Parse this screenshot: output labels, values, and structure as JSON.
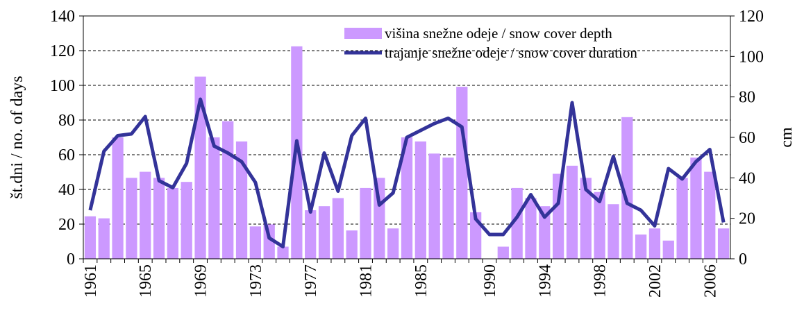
{
  "chart_data": {
    "type": "bar-line",
    "categories": [
      "1961",
      null,
      null,
      null,
      "1965",
      null,
      null,
      null,
      "1969",
      null,
      null,
      null,
      "1973",
      null,
      null,
      null,
      "1977",
      null,
      null,
      null,
      "1981",
      null,
      null,
      null,
      "1985",
      null,
      null,
      null,
      null,
      "1990",
      null,
      null,
      null,
      "1994",
      null,
      null,
      null,
      "1998",
      null,
      null,
      null,
      "2002",
      null,
      null,
      null,
      "2006",
      null
    ],
    "series": [
      {
        "name": "višina snežne odeje / snow cover depth",
        "color": "#cc99ff",
        "axis": "y2",
        "kind": "bar",
        "values": [
          21,
          20,
          60,
          40,
          43,
          40,
          35,
          38,
          90,
          60,
          68,
          58,
          16,
          17,
          6,
          105,
          24,
          26,
          30,
          14,
          35,
          40,
          15,
          60,
          58,
          52,
          50,
          85,
          23,
          0,
          6,
          35,
          30,
          26,
          42,
          46,
          40,
          33,
          27,
          70,
          12,
          15,
          9,
          40,
          50,
          43,
          15
        ]
      },
      {
        "name": "trajanje snežne odeje / snow cover duration",
        "color": "#333399",
        "axis": "y",
        "kind": "line",
        "values": [
          28,
          62,
          71,
          72,
          82,
          45,
          41,
          55,
          92,
          65,
          61,
          56,
          44,
          12,
          7,
          68,
          27,
          61,
          39,
          71,
          81,
          31,
          38,
          70,
          74,
          78,
          81,
          76,
          23,
          14,
          14,
          24,
          37,
          24,
          32,
          90,
          40,
          33,
          59,
          32,
          28,
          19,
          52,
          46,
          56,
          63,
          21
        ]
      }
    ],
    "ylabel": "št.dni / no. of days",
    "y2label": "cm",
    "ylim": [
      0,
      140
    ],
    "yticks": [
      0,
      20,
      40,
      60,
      80,
      100,
      120,
      140
    ],
    "y2lim": [
      0,
      120
    ],
    "y2ticks": [
      0,
      20,
      40,
      60,
      80,
      100,
      120
    ],
    "grid": true,
    "legend": "top-right"
  }
}
